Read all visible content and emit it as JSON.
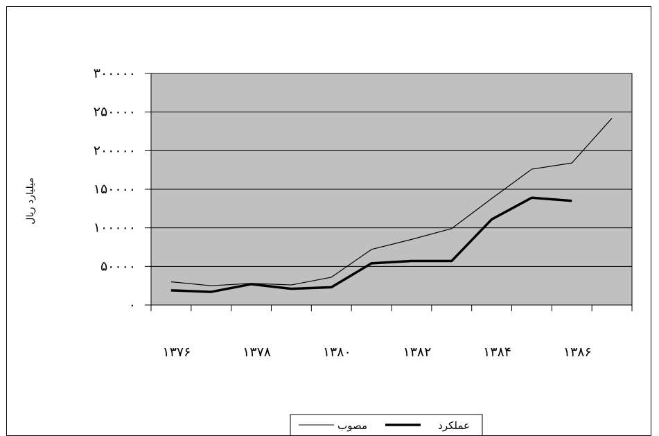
{
  "chart_data": {
    "type": "line",
    "title": "",
    "xlabel": "",
    "ylabel": "میلیارد ریال",
    "x": [
      1376,
      1377,
      1378,
      1379,
      1380,
      1381,
      1382,
      1383,
      1384,
      1385,
      1386,
      1387
    ],
    "x_tick_labels": [
      "۱۳۷۶",
      "۱۳۷۸",
      "۱۳۸۰",
      "۱۳۸۲",
      "۱۳۸۴",
      "۱۳۸۶"
    ],
    "x_tick_values": [
      1376,
      1378,
      1380,
      1382,
      1384,
      1386
    ],
    "y_tick_labels": [
      "۰",
      "۵۰۰۰۰",
      "۱۰۰۰۰۰",
      "۱۵۰۰۰۰",
      "۲۰۰۰۰۰",
      "۲۵۰۰۰۰",
      "۳۰۰۰۰۰"
    ],
    "y_tick_values": [
      0,
      50000,
      100000,
      150000,
      200000,
      250000,
      300000
    ],
    "ylim": [
      0,
      300000
    ],
    "grid": true,
    "background": "#c0c0c0",
    "legend_position": "bottom",
    "series": [
      {
        "name": "مصوب",
        "values": [
          30000,
          25000,
          28000,
          26000,
          36000,
          72000,
          85000,
          99000,
          138000,
          176000,
          184000,
          242000
        ],
        "color": "#000000",
        "stroke": "thin"
      },
      {
        "name": "عملکرد",
        "values": [
          19000,
          17000,
          27000,
          21000,
          23000,
          54000,
          57000,
          57000,
          111000,
          139000,
          135000,
          null
        ],
        "color": "#000000",
        "stroke": "thick"
      }
    ]
  }
}
